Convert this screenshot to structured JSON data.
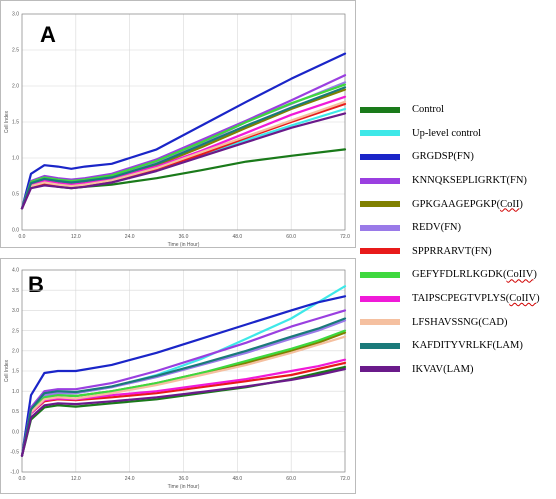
{
  "panels": {
    "a": {
      "letter": "A"
    },
    "b": {
      "letter": "B"
    }
  },
  "colors": {
    "Control": "#1a7a1a",
    "Up-level control": "#3ee8e8",
    "GRGDSP(FN)": "#1a25c8",
    "KNNQKSEPLIGRKT(FN)": "#9a3fe0",
    "GPKGAAGEPGKP(CoII)": "#808000",
    "REDV(FN)": "#9a7ae8",
    "SPPRRARVT(FN)": "#e81a1a",
    "GEFYFDLRLKGDK(CoIIV)": "#3ed83e",
    "TAIPSCPEGTVPLYS(CoIIV)": "#f01ad8",
    "LFSHAVSSNG(CAD)": "#f5c0a0",
    "KAFDITYVRLKF(LAM)": "#1a7a7a",
    "IKVAV(LAM)": "#6a1a8a"
  },
  "legend": {
    "items": [
      {
        "label": "Control"
      },
      {
        "label": "Up-level control"
      },
      {
        "label": "GRGDSP(FN)"
      },
      {
        "label": "KNNQKSEPLIGRKT(FN)"
      },
      {
        "label": "GPKGAAGEPGKP(",
        "wavy": "CoII",
        "tail": ")"
      },
      {
        "label": "REDV(FN)"
      },
      {
        "label": "SPPRRARVT(FN)"
      },
      {
        "label": "GEFYFDLRLKGDK(",
        "wavy": "CoIIV",
        "tail": ")"
      },
      {
        "label": "TAIPSCPEGTVPLYS(",
        "wavy": "CoIIV",
        "tail": ")"
      },
      {
        "label": "LFSHAVSSNG(CAD)"
      },
      {
        "label": "KAFDITYVRLKF(LAM)"
      },
      {
        "label": "IKVAV(LAM)"
      }
    ]
  },
  "chart_data": [
    {
      "type": "line",
      "panel": "A",
      "xlabel": "Time (in Hour)",
      "ylabel": "Cell Index",
      "xlim": [
        0,
        72
      ],
      "ylim": [
        0,
        3.0
      ],
      "x_ticks": [
        "0.0",
        "12.0",
        "24.0",
        "36.0",
        "48.0",
        "60.0",
        "72.0"
      ],
      "y_ticks": [
        "0.0",
        "0.5",
        "1.0",
        "1.5",
        "2.0",
        "2.5",
        "3.0"
      ],
      "grid": true,
      "x": [
        0,
        2,
        5,
        8,
        11,
        14,
        20,
        30,
        40,
        50,
        60,
        72
      ],
      "series": [
        {
          "name": "Control",
          "values": [
            0.3,
            0.6,
            0.64,
            0.6,
            0.58,
            0.6,
            0.63,
            0.72,
            0.83,
            0.95,
            1.03,
            1.12
          ]
        },
        {
          "name": "Up-level control",
          "values": [
            0.3,
            0.62,
            0.67,
            0.64,
            0.62,
            0.64,
            0.7,
            0.85,
            1.05,
            1.25,
            1.45,
            1.68
          ]
        },
        {
          "name": "GRGDSP(FN)",
          "values": [
            0.3,
            0.78,
            0.9,
            0.88,
            0.85,
            0.88,
            0.92,
            1.12,
            1.45,
            1.78,
            2.1,
            2.45
          ]
        },
        {
          "name": "KNNQKSEPLIGRKT(FN)",
          "values": [
            0.3,
            0.68,
            0.75,
            0.72,
            0.7,
            0.72,
            0.78,
            0.98,
            1.25,
            1.52,
            1.8,
            2.15
          ]
        },
        {
          "name": "GPKGAAGEPGKP(CoII)",
          "values": [
            0.3,
            0.64,
            0.7,
            0.67,
            0.65,
            0.67,
            0.72,
            0.9,
            1.15,
            1.42,
            1.68,
            1.95
          ]
        },
        {
          "name": "REDV(FN)",
          "values": [
            0.3,
            0.66,
            0.72,
            0.69,
            0.67,
            0.69,
            0.75,
            0.95,
            1.2,
            1.5,
            1.75,
            2.05
          ]
        },
        {
          "name": "SPPRRARVT(FN)",
          "values": [
            0.3,
            0.6,
            0.65,
            0.62,
            0.6,
            0.62,
            0.68,
            0.85,
            1.05,
            1.28,
            1.5,
            1.75
          ]
        },
        {
          "name": "GEFYFDLRLKGDK(CoIIV)",
          "values": [
            0.3,
            0.67,
            0.73,
            0.7,
            0.68,
            0.7,
            0.76,
            0.96,
            1.22,
            1.5,
            1.76,
            2.02
          ]
        },
        {
          "name": "TAIPSCPEGTVPLYS(CoIIV)",
          "values": [
            0.3,
            0.63,
            0.68,
            0.65,
            0.63,
            0.65,
            0.71,
            0.88,
            1.1,
            1.35,
            1.6,
            1.85
          ]
        },
        {
          "name": "LFSHAVSSNG(CAD)",
          "values": [
            0.3,
            0.61,
            0.66,
            0.63,
            0.61,
            0.63,
            0.69,
            0.86,
            1.08,
            1.3,
            1.52,
            1.78
          ]
        },
        {
          "name": "KAFDITYVRLKF(LAM)",
          "values": [
            0.3,
            0.65,
            0.71,
            0.68,
            0.66,
            0.68,
            0.73,
            0.92,
            1.18,
            1.45,
            1.7,
            1.98
          ]
        },
        {
          "name": "IKVAV(LAM)",
          "values": [
            0.3,
            0.58,
            0.62,
            0.6,
            0.58,
            0.6,
            0.66,
            0.82,
            1.02,
            1.22,
            1.42,
            1.62
          ]
        }
      ]
    },
    {
      "type": "line",
      "panel": "B",
      "xlabel": "Time (in Hour)",
      "ylabel": "Cell Index",
      "xlim": [
        0,
        72
      ],
      "ylim": [
        -1.0,
        4.0
      ],
      "x_ticks": [
        "0.0",
        "12.0",
        "24.0",
        "36.0",
        "48.0",
        "60.0",
        "72.0"
      ],
      "y_ticks": [
        "-1.0",
        "-0.5",
        "0.0",
        "0.5",
        "1.0",
        "1.5",
        "2.0",
        "2.5",
        "3.0",
        "3.5",
        "4.0"
      ],
      "grid": true,
      "x": [
        0,
        2,
        5,
        8,
        12,
        20,
        30,
        40,
        50,
        60,
        66,
        72
      ],
      "series": [
        {
          "name": "Control",
          "values": [
            -0.6,
            0.3,
            0.6,
            0.65,
            0.62,
            0.7,
            0.8,
            0.95,
            1.1,
            1.3,
            1.45,
            1.6
          ]
        },
        {
          "name": "Up-level control",
          "values": [
            -0.6,
            0.5,
            0.9,
            0.95,
            0.95,
            1.1,
            1.4,
            1.8,
            2.3,
            2.8,
            3.2,
            3.6
          ]
        },
        {
          "name": "GRGDSP(FN)",
          "values": [
            -0.6,
            0.9,
            1.45,
            1.5,
            1.5,
            1.65,
            1.95,
            2.3,
            2.65,
            3.0,
            3.2,
            3.35
          ]
        },
        {
          "name": "KNNQKSEPLIGRKT(FN)",
          "values": [
            -0.6,
            0.6,
            1.0,
            1.05,
            1.05,
            1.2,
            1.5,
            1.85,
            2.2,
            2.6,
            2.8,
            3.0
          ]
        },
        {
          "name": "GPKGAAGEPGKP(CoII)",
          "values": [
            -0.6,
            0.5,
            0.85,
            0.9,
            0.88,
            1.0,
            1.2,
            1.45,
            1.7,
            2.0,
            2.2,
            2.45
          ]
        },
        {
          "name": "REDV(FN)",
          "values": [
            -0.6,
            0.55,
            0.9,
            0.95,
            0.95,
            1.1,
            1.35,
            1.65,
            1.95,
            2.3,
            2.5,
            2.75
          ]
        },
        {
          "name": "SPPRRARVT(FN)",
          "values": [
            -0.6,
            0.45,
            0.75,
            0.8,
            0.78,
            0.85,
            0.95,
            1.1,
            1.25,
            1.4,
            1.55,
            1.7
          ]
        },
        {
          "name": "GEFYFDLRLKGDK(CoIIV)",
          "values": [
            -0.6,
            0.5,
            0.85,
            0.9,
            0.88,
            1.0,
            1.2,
            1.45,
            1.75,
            2.05,
            2.25,
            2.5
          ]
        },
        {
          "name": "TAIPSCPEGTVPLYS(CoIIV)",
          "values": [
            -0.6,
            0.45,
            0.78,
            0.82,
            0.8,
            0.9,
            1.0,
            1.15,
            1.3,
            1.5,
            1.62,
            1.78
          ]
        },
        {
          "name": "LFSHAVSSNG(CAD)",
          "values": [
            -0.6,
            0.48,
            0.8,
            0.85,
            0.82,
            0.95,
            1.15,
            1.4,
            1.65,
            1.95,
            2.15,
            2.35
          ]
        },
        {
          "name": "KAFDITYVRLKF(LAM)",
          "values": [
            -0.6,
            0.55,
            0.95,
            1.0,
            0.98,
            1.12,
            1.38,
            1.68,
            2.0,
            2.35,
            2.55,
            2.8
          ]
        },
        {
          "name": "IKVAV(LAM)",
          "values": [
            -0.6,
            0.35,
            0.65,
            0.7,
            0.68,
            0.75,
            0.85,
            0.98,
            1.12,
            1.28,
            1.4,
            1.55
          ]
        }
      ]
    }
  ]
}
